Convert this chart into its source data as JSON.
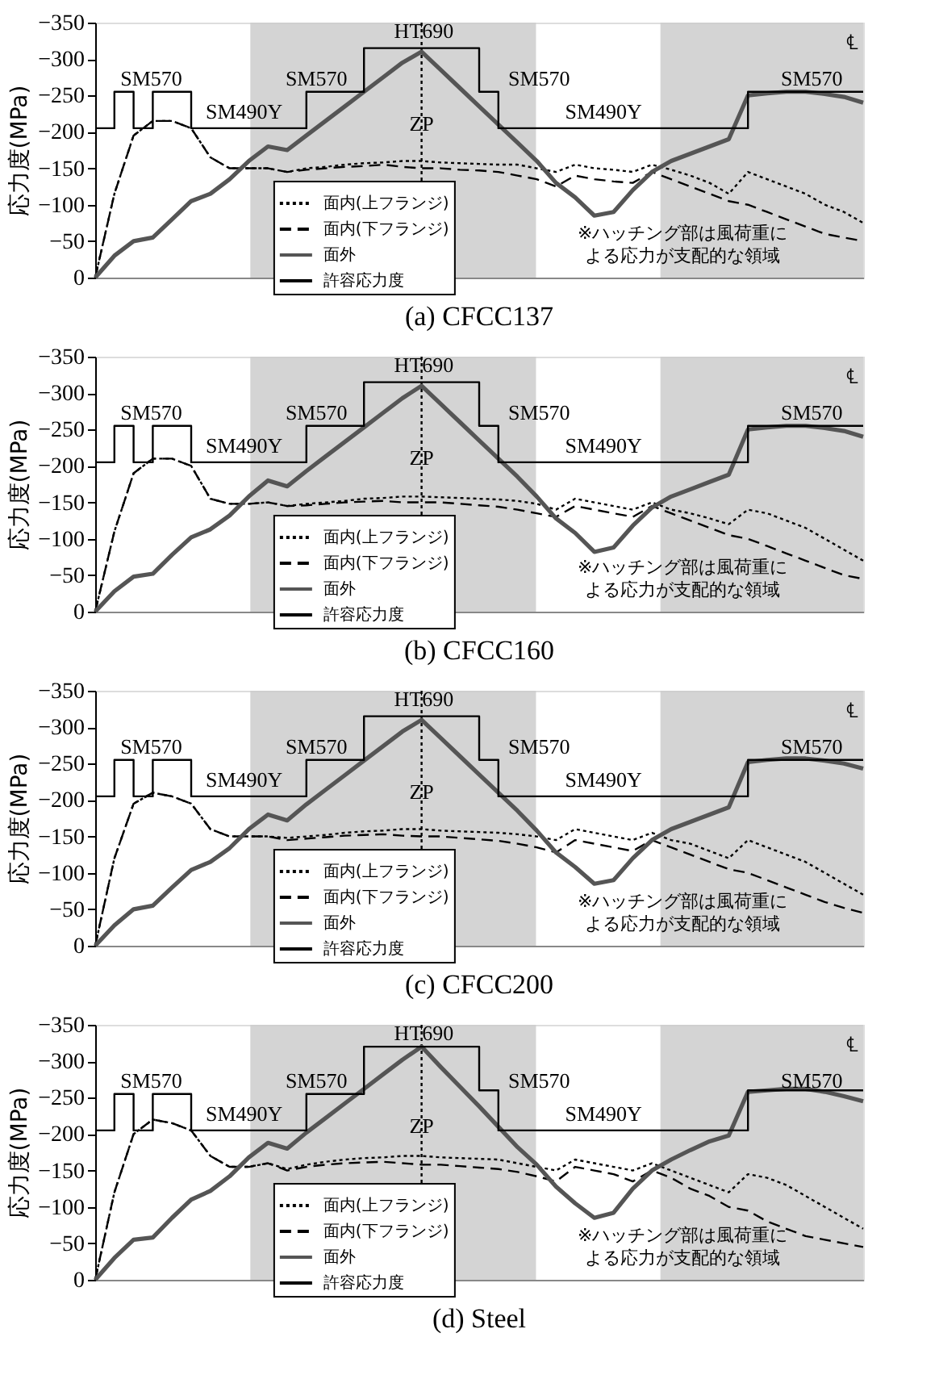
{
  "chart_data": [
    {
      "type": "line",
      "title": "(a) CFCC137",
      "ylabel": "応力度(MPa)",
      "categories": [
        null,
        null,
        null,
        null,
        null,
        null,
        null,
        null,
        null,
        null,
        null,
        null,
        null,
        null,
        null,
        null,
        null,
        null,
        null,
        null,
        null,
        null,
        null,
        null,
        null,
        null,
        null,
        null,
        null,
        null,
        null,
        null,
        null,
        null,
        null,
        null,
        null,
        null,
        null,
        null,
        null
      ],
      "ylim": [
        0,
        -350
      ],
      "yticks": [
        0,
        -50,
        -100,
        -150,
        -200,
        -250,
        -300,
        -350
      ],
      "tick_labels": "y",
      "grid": false,
      "legend": "bottom",
      "series": [
        {
          "name": "面内(上フランジ)",
          "color": "#000000",
          "line_style": "dotted",
          "values": [
            0,
            -115,
            -195,
            -215,
            -215,
            -205,
            -165,
            -150,
            -150,
            -150,
            -145,
            -150,
            -152,
            -155,
            -157,
            -158,
            -160,
            -160,
            -158,
            -157,
            -156,
            -155,
            -155,
            -150,
            -145,
            -155,
            -150,
            -148,
            -145,
            -155,
            -148,
            -140,
            -130,
            -115,
            -145,
            -135,
            -125,
            -115,
            -100,
            -90,
            -75
          ]
        },
        {
          "name": "面内(下フランジ)",
          "color": "#000000",
          "line_style": "dashed",
          "values": [
            0,
            -115,
            -195,
            -215,
            -215,
            -205,
            -165,
            -150,
            -150,
            -150,
            -145,
            -148,
            -150,
            -152,
            -153,
            -155,
            -152,
            -150,
            -150,
            -148,
            -147,
            -145,
            -140,
            -135,
            -125,
            -140,
            -135,
            -132,
            -130,
            -145,
            -135,
            -125,
            -115,
            -105,
            -100,
            -90,
            -80,
            -70,
            -60,
            -55,
            -50
          ]
        },
        {
          "name": "面外",
          "color": "#555555",
          "line_style": "solid",
          "values": [
            0,
            -30,
            -50,
            -55,
            -80,
            -105,
            -115,
            -135,
            -160,
            -180,
            -175,
            -195,
            -215,
            -235,
            -255,
            -275,
            -295,
            -310,
            -285,
            -260,
            -235,
            -210,
            -185,
            -160,
            -130,
            -110,
            -85,
            -90,
            -120,
            -145,
            -160,
            -170,
            -180,
            -190,
            -250,
            -253,
            -255,
            -255,
            -252,
            -248,
            -240
          ]
        },
        {
          "name": "許容応力度",
          "color": "#000000",
          "line_style": "solid",
          "type": "step",
          "values": [
            -205,
            -255,
            -205,
            -255,
            -255,
            -205,
            -205,
            -205,
            -205,
            -205,
            -205,
            -255,
            -255,
            -255,
            -315,
            -315,
            -315,
            -315,
            -315,
            -315,
            -255,
            -205,
            -205,
            -205,
            -205,
            -205,
            -205,
            -205,
            -205,
            -205,
            -205,
            -205,
            -205,
            -205,
            -255,
            -255,
            -255,
            -255,
            -255,
            -255,
            -255
          ]
        }
      ],
      "annotations": [
        "SM570",
        "SM490Y",
        "SM570",
        "HT690",
        "SM570",
        "SM490Y",
        "SM570",
        "℄",
        "ZP",
        "※ハッチング部は風荷重による応力が支配的な領域"
      ]
    },
    {
      "type": "line",
      "title": "(b) CFCC160",
      "ylabel": "応力度(MPa)",
      "categories": [
        null,
        null,
        null,
        null,
        null,
        null,
        null,
        null,
        null,
        null,
        null,
        null,
        null,
        null,
        null,
        null,
        null,
        null,
        null,
        null,
        null,
        null,
        null,
        null,
        null,
        null,
        null,
        null,
        null,
        null,
        null,
        null,
        null,
        null,
        null,
        null,
        null,
        null,
        null,
        null,
        null
      ],
      "ylim": [
        0,
        -350
      ],
      "yticks": [
        0,
        -50,
        -100,
        -150,
        -200,
        -250,
        -300,
        -350
      ],
      "tick_labels": "y",
      "grid": false,
      "legend": "bottom",
      "series": [
        {
          "name": "面内(上フランジ)",
          "color": "#000000",
          "line_style": "dotted",
          "values": [
            0,
            -110,
            -190,
            -210,
            -210,
            -200,
            -155,
            -148,
            -148,
            -150,
            -145,
            -148,
            -150,
            -152,
            -155,
            -156,
            -158,
            -158,
            -157,
            -156,
            -155,
            -154,
            -152,
            -148,
            -140,
            -155,
            -150,
            -145,
            -140,
            -150,
            -140,
            -135,
            -128,
            -120,
            -140,
            -135,
            -125,
            -115,
            -100,
            -85,
            -70
          ]
        },
        {
          "name": "面内(下フランジ)",
          "color": "#000000",
          "line_style": "dashed",
          "values": [
            0,
            -110,
            -190,
            -210,
            -210,
            -200,
            -155,
            -148,
            -148,
            -150,
            -145,
            -146,
            -148,
            -150,
            -151,
            -152,
            -150,
            -150,
            -150,
            -148,
            -146,
            -144,
            -140,
            -135,
            -130,
            -145,
            -140,
            -135,
            -130,
            -145,
            -135,
            -125,
            -115,
            -105,
            -100,
            -90,
            -80,
            -70,
            -60,
            -50,
            -45
          ]
        },
        {
          "name": "面外",
          "color": "#555555",
          "line_style": "solid",
          "values": [
            0,
            -28,
            -48,
            -52,
            -78,
            -102,
            -113,
            -132,
            -158,
            -180,
            -172,
            -193,
            -213,
            -233,
            -253,
            -273,
            -293,
            -310,
            -285,
            -260,
            -235,
            -210,
            -185,
            -158,
            -128,
            -108,
            -82,
            -88,
            -118,
            -143,
            -158,
            -168,
            -178,
            -188,
            -250,
            -253,
            -255,
            -255,
            -252,
            -248,
            -240
          ]
        },
        {
          "name": "許容応力度",
          "color": "#000000",
          "line_style": "solid",
          "type": "step",
          "values": [
            -205,
            -255,
            -205,
            -255,
            -255,
            -205,
            -205,
            -205,
            -205,
            -205,
            -205,
            -255,
            -255,
            -255,
            -315,
            -315,
            -315,
            -315,
            -315,
            -315,
            -255,
            -205,
            -205,
            -205,
            -205,
            -205,
            -205,
            -205,
            -205,
            -205,
            -205,
            -205,
            -205,
            -205,
            -255,
            -255,
            -255,
            -255,
            -255,
            -255,
            -255
          ]
        }
      ],
      "annotations": [
        "SM570",
        "SM490Y",
        "SM570",
        "HT690",
        "SM570",
        "SM490Y",
        "SM570",
        "℄",
        "ZP",
        "※ハッチング部は風荷重による応力が支配的な領域"
      ]
    },
    {
      "type": "line",
      "title": "(c) CFCC200",
      "ylabel": "応力度(MPa)",
      "categories": [
        null,
        null,
        null,
        null,
        null,
        null,
        null,
        null,
        null,
        null,
        null,
        null,
        null,
        null,
        null,
        null,
        null,
        null,
        null,
        null,
        null,
        null,
        null,
        null,
        null,
        null,
        null,
        null,
        null,
        null,
        null,
        null,
        null,
        null,
        null,
        null,
        null,
        null,
        null,
        null,
        null
      ],
      "ylim": [
        0,
        -350
      ],
      "yticks": [
        0,
        -50,
        -100,
        -150,
        -200,
        -250,
        -300,
        -350
      ],
      "tick_labels": "y",
      "grid": false,
      "legend": "bottom",
      "series": [
        {
          "name": "面内(上フランジ)",
          "color": "#000000",
          "line_style": "dotted",
          "values": [
            0,
            -120,
            -195,
            -210,
            -205,
            -195,
            -160,
            -150,
            -150,
            -150,
            -148,
            -150,
            -152,
            -155,
            -157,
            -158,
            -160,
            -160,
            -158,
            -157,
            -156,
            -155,
            -153,
            -150,
            -145,
            -160,
            -155,
            -150,
            -145,
            -155,
            -145,
            -140,
            -130,
            -120,
            -145,
            -135,
            -125,
            -115,
            -100,
            -85,
            -70
          ]
        },
        {
          "name": "面内(下フランジ)",
          "color": "#000000",
          "line_style": "dashed",
          "values": [
            0,
            -120,
            -195,
            -210,
            -205,
            -195,
            -160,
            -150,
            -150,
            -150,
            -145,
            -147,
            -149,
            -151,
            -152,
            -153,
            -151,
            -150,
            -150,
            -148,
            -146,
            -144,
            -140,
            -135,
            -128,
            -145,
            -140,
            -135,
            -130,
            -145,
            -135,
            -125,
            -115,
            -105,
            -100,
            -90,
            -80,
            -70,
            -60,
            -52,
            -45
          ]
        },
        {
          "name": "面外",
          "color": "#555555",
          "line_style": "solid",
          "values": [
            0,
            -28,
            -50,
            -55,
            -80,
            -104,
            -115,
            -134,
            -160,
            -180,
            -172,
            -194,
            -214,
            -234,
            -254,
            -274,
            -294,
            -310,
            -285,
            -260,
            -235,
            -210,
            -185,
            -158,
            -128,
            -108,
            -85,
            -90,
            -120,
            -145,
            -160,
            -170,
            -180,
            -190,
            -252,
            -255,
            -257,
            -257,
            -254,
            -250,
            -243
          ]
        },
        {
          "name": "許容応力度",
          "color": "#000000",
          "line_style": "solid",
          "type": "step",
          "values": [
            -205,
            -255,
            -205,
            -255,
            -255,
            -205,
            -205,
            -205,
            -205,
            -205,
            -205,
            -255,
            -255,
            -255,
            -315,
            -315,
            -315,
            -315,
            -315,
            -315,
            -255,
            -205,
            -205,
            -205,
            -205,
            -205,
            -205,
            -205,
            -205,
            -205,
            -205,
            -205,
            -205,
            -205,
            -255,
            -255,
            -255,
            -255,
            -255,
            -255,
            -255
          ]
        }
      ],
      "annotations": [
        "SM570",
        "SM490Y",
        "SM570",
        "HT690",
        "SM570",
        "SM490Y",
        "SM570",
        "℄",
        "ZP",
        "※ハッチング部は風荷重による応力が支配的な領域"
      ]
    },
    {
      "type": "line",
      "title": "(d) Steel",
      "ylabel": "応力度(MPa)",
      "categories": [
        null,
        null,
        null,
        null,
        null,
        null,
        null,
        null,
        null,
        null,
        null,
        null,
        null,
        null,
        null,
        null,
        null,
        null,
        null,
        null,
        null,
        null,
        null,
        null,
        null,
        null,
        null,
        null,
        null,
        null,
        null,
        null,
        null,
        null,
        null,
        null,
        null,
        null,
        null,
        null,
        null
      ],
      "ylim": [
        0,
        -350
      ],
      "yticks": [
        0,
        -50,
        -100,
        -150,
        -200,
        -250,
        -300,
        -350
      ],
      "tick_labels": "y",
      "grid": false,
      "legend": "bottom",
      "series": [
        {
          "name": "面内(上フランジ)",
          "color": "#000000",
          "line_style": "dotted",
          "values": [
            0,
            -120,
            -200,
            -220,
            -215,
            -205,
            -170,
            -155,
            -155,
            -160,
            -152,
            -158,
            -162,
            -165,
            -167,
            -168,
            -170,
            -170,
            -168,
            -167,
            -166,
            -165,
            -160,
            -155,
            -150,
            -165,
            -160,
            -155,
            -150,
            -160,
            -150,
            -140,
            -130,
            -120,
            -145,
            -140,
            -130,
            -115,
            -100,
            -85,
            -70
          ]
        },
        {
          "name": "面内(下フランジ)",
          "color": "#000000",
          "line_style": "dashed",
          "values": [
            0,
            -120,
            -200,
            -220,
            -215,
            -205,
            -170,
            -155,
            -155,
            -160,
            -150,
            -155,
            -158,
            -160,
            -161,
            -162,
            -160,
            -158,
            -158,
            -156,
            -154,
            -152,
            -148,
            -142,
            -135,
            -155,
            -150,
            -145,
            -135,
            -150,
            -140,
            -125,
            -115,
            -100,
            -95,
            -80,
            -70,
            -60,
            -55,
            -50,
            -45
          ]
        },
        {
          "name": "面外",
          "color": "#555555",
          "line_style": "solid",
          "values": [
            0,
            -30,
            -55,
            -58,
            -85,
            -110,
            -122,
            -142,
            -168,
            -188,
            -180,
            -202,
            -222,
            -242,
            -262,
            -282,
            -302,
            -320,
            -292,
            -265,
            -238,
            -210,
            -182,
            -158,
            -128,
            -105,
            -85,
            -92,
            -125,
            -150,
            -165,
            -178,
            -190,
            -198,
            -258,
            -260,
            -262,
            -262,
            -258,
            -252,
            -245
          ]
        },
        {
          "name": "許容応力度",
          "color": "#000000",
          "line_style": "solid",
          "type": "step",
          "values": [
            -205,
            -255,
            -205,
            -255,
            -255,
            -205,
            -205,
            -205,
            -205,
            -205,
            -205,
            -255,
            -255,
            -255,
            -320,
            -320,
            -320,
            -320,
            -320,
            -320,
            -260,
            -205,
            -205,
            -205,
            -205,
            -205,
            -205,
            -205,
            -205,
            -205,
            -205,
            -205,
            -205,
            -205,
            -260,
            -260,
            -260,
            -260,
            -260,
            -260,
            -260
          ]
        }
      ],
      "annotations": [
        "SM570",
        "SM490Y",
        "SM570",
        "HT690",
        "SM570",
        "SM490Y",
        "SM570",
        "℄",
        "ZP",
        "※ハッチング部は風荷重による応力が支配的な領域"
      ]
    }
  ]
}
